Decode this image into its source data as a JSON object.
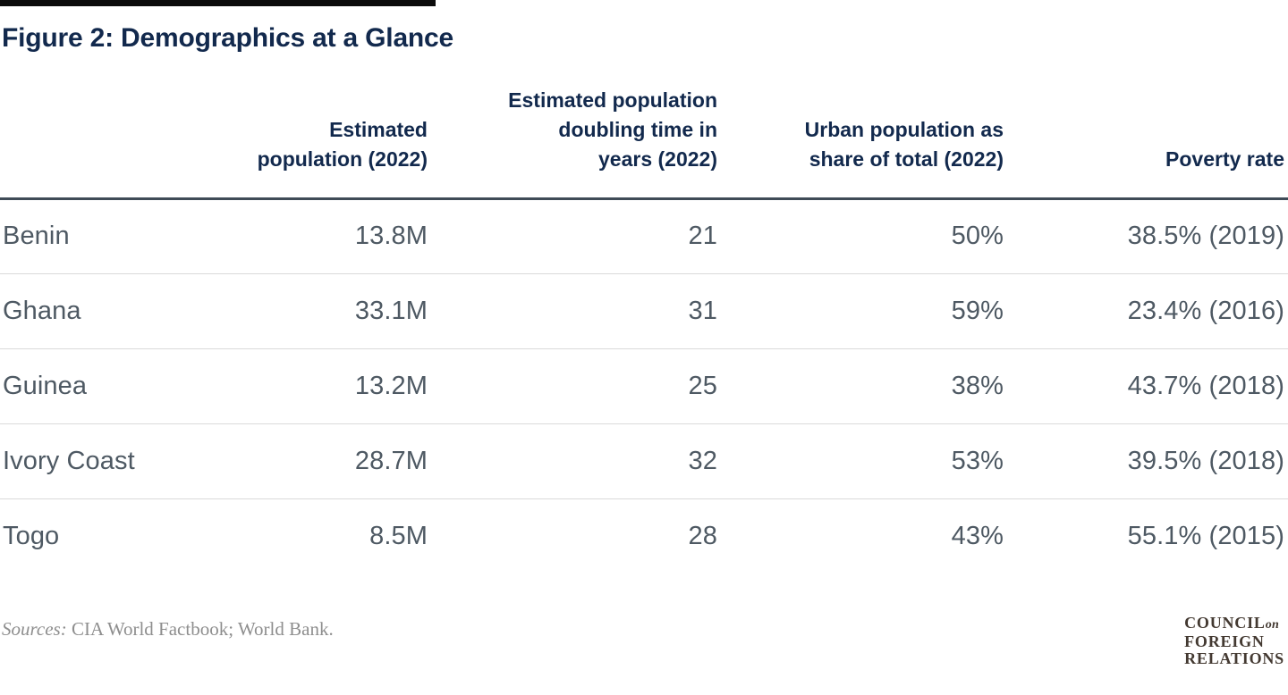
{
  "figure": {
    "title": "Figure 2: Demographics at a Glance",
    "sources_label": "Sources:",
    "sources_text": " CIA World Factbook; World Bank."
  },
  "table": {
    "headers": [
      {
        "label": "Estimated population (2022)",
        "lines": [
          "Estimated",
          "population (2022)"
        ]
      },
      {
        "label": "Estimated population doubling time in years (2022)",
        "lines": [
          "Estimated population",
          "doubling time in",
          "years (2022)"
        ]
      },
      {
        "label": "Urban population as share of total (2022)",
        "lines": [
          "Urban population as",
          "share of total (2022)"
        ]
      },
      {
        "label": "Poverty rate",
        "lines": [
          "Poverty rate"
        ]
      }
    ],
    "rows": [
      {
        "country": "Benin",
        "population": "13.8M",
        "doubling_time": "21",
        "urban_share": "50%",
        "poverty_rate": "38.5% (2019)"
      },
      {
        "country": "Ghana",
        "population": "33.1M",
        "doubling_time": "31",
        "urban_share": "59%",
        "poverty_rate": "23.4% (2016)"
      },
      {
        "country": "Guinea",
        "population": "13.2M",
        "doubling_time": "25",
        "urban_share": "38%",
        "poverty_rate": "43.7% (2018)"
      },
      {
        "country": "Ivory Coast",
        "population": "28.7M",
        "doubling_time": "32",
        "urban_share": "53%",
        "poverty_rate": "39.5% (2018)"
      },
      {
        "country": "Togo",
        "population": "8.5M",
        "doubling_time": "28",
        "urban_share": "43%",
        "poverty_rate": "55.1% (2015)"
      }
    ]
  },
  "logo": {
    "line1": "COUNCIL",
    "line1_suffix": "on",
    "line2": "FOREIGN",
    "line3": "RELATIONS"
  },
  "colors": {
    "title_navy": "#12294d",
    "data_gray": "#4e5963",
    "header_rule": "#3f4b57",
    "row_separator": "#dadada",
    "sources_gray": "#8e8e8e",
    "logo_brown": "#433931",
    "top_rule_black": "#0b0b0b"
  },
  "chart_data": {
    "type": "table",
    "title": "Figure 2: Demographics at a Glance",
    "categories": [
      "Benin",
      "Ghana",
      "Guinea",
      "Ivory Coast",
      "Togo"
    ],
    "series": [
      {
        "name": "Estimated population (2022)",
        "values": [
          "13.8M",
          "33.1M",
          "13.2M",
          "28.7M",
          "8.5M"
        ]
      },
      {
        "name": "Estimated population doubling time in years (2022)",
        "values": [
          21,
          31,
          25,
          32,
          28
        ]
      },
      {
        "name": "Urban population as share of total (2022)",
        "values": [
          "50%",
          "59%",
          "38%",
          "53%",
          "43%"
        ]
      },
      {
        "name": "Poverty rate",
        "values": [
          "38.5% (2019)",
          "23.4% (2016)",
          "43.7% (2018)",
          "39.5% (2018)",
          "55.1% (2015)"
        ]
      }
    ],
    "source_note": "Sources: CIA World Factbook; World Bank.",
    "legend_position": "none",
    "grid": "horizontal-row-separators"
  }
}
